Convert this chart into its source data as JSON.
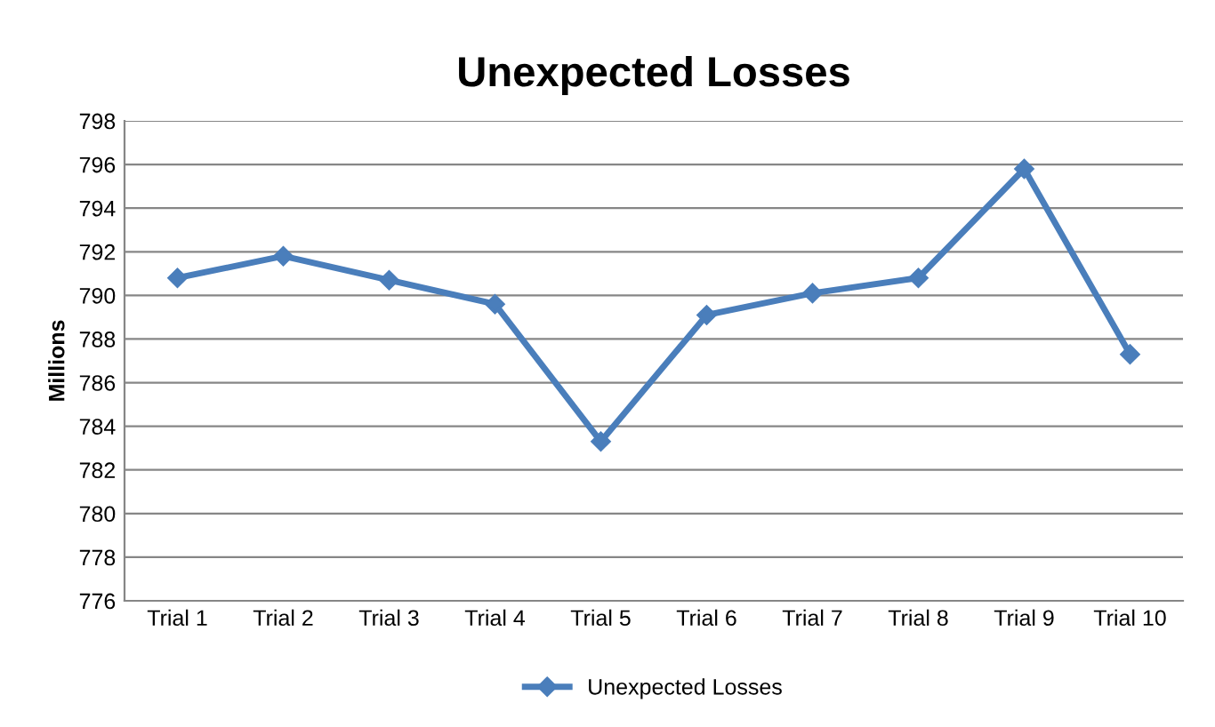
{
  "chart_data": {
    "type": "line",
    "title": "Unexpected Losses",
    "ylabel": "Millions",
    "categories": [
      "Trial 1",
      "Trial 2",
      "Trial 3",
      "Trial 4",
      "Trial 5",
      "Trial 6",
      "Trial 7",
      "Trial 8",
      "Trial 9",
      "Trial 10"
    ],
    "series": [
      {
        "name": "Unexpected Losses",
        "color": "#4a7ebb",
        "values": [
          790.8,
          791.8,
          790.7,
          789.6,
          783.3,
          789.1,
          790.1,
          790.8,
          795.8,
          787.3
        ]
      }
    ],
    "ylim": [
      776,
      798
    ],
    "yticks": [
      776,
      778,
      780,
      782,
      784,
      786,
      788,
      790,
      792,
      794,
      796,
      798
    ],
    "grid": "y",
    "legend": "bottom",
    "marker": "diamond",
    "line_style": "solid"
  }
}
